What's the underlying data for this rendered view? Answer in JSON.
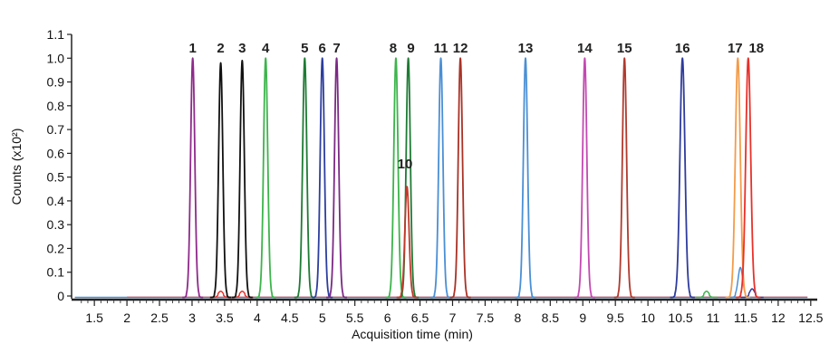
{
  "chart_data": {
    "type": "line",
    "title": "",
    "xlabel": "Acquisition time (min)",
    "ylabel": "Counts (x10²)",
    "xlim": [
      1.15,
      12.6
    ],
    "ylim": [
      0,
      1.1
    ],
    "x_ticks": [
      "1.5",
      "2",
      "2.5",
      "3",
      "3.5",
      "4",
      "4.5",
      "5",
      "5.5",
      "6",
      "6.5",
      "7",
      "7.5",
      "8",
      "8.5",
      "9",
      "9.5",
      "10",
      "10.5",
      "11",
      "11.5",
      "12",
      "12.5"
    ],
    "y_ticks": [
      "0",
      "0.1",
      "0.2",
      "0.3",
      "0.4",
      "0.5",
      "0.6",
      "0.7",
      "0.8",
      "0.9",
      "1.0",
      "1.1"
    ],
    "grid": false,
    "series": [
      {
        "name": "1",
        "rt": 3.01,
        "height": 1.0,
        "color": "#8e2a8a"
      },
      {
        "name": "2",
        "rt": 3.44,
        "height": 0.98,
        "color": "#111111"
      },
      {
        "name": "3",
        "rt": 3.77,
        "height": 0.99,
        "color": "#111111"
      },
      {
        "name": "4",
        "rt": 4.13,
        "height": 1.0,
        "color": "#3cb44b"
      },
      {
        "name": "5",
        "rt": 4.73,
        "height": 1.0,
        "color": "#1e7b34"
      },
      {
        "name": "6",
        "rt": 5.0,
        "height": 1.0,
        "color": "#2c3e9e"
      },
      {
        "name": "7",
        "rt": 5.22,
        "height": 1.0,
        "color": "#7b2a84"
      },
      {
        "name": "8",
        "rt": 6.13,
        "height": 1.0,
        "color": "#3cb44b"
      },
      {
        "name": "9",
        "rt": 6.32,
        "height": 1.0,
        "color": "#1e7b34"
      },
      {
        "name": "10",
        "rt": 6.3,
        "height": 0.46,
        "color": "#c0392b"
      },
      {
        "name": "11",
        "rt": 6.82,
        "height": 1.0,
        "color": "#4a8fd4"
      },
      {
        "name": "12",
        "rt": 7.12,
        "height": 1.0,
        "color": "#a93226"
      },
      {
        "name": "13",
        "rt": 8.12,
        "height": 1.0,
        "color": "#4a8fd4"
      },
      {
        "name": "14",
        "rt": 9.03,
        "height": 1.0,
        "color": "#c349b1"
      },
      {
        "name": "15",
        "rt": 9.64,
        "height": 1.0,
        "color": "#b03a2e"
      },
      {
        "name": "16",
        "rt": 10.53,
        "height": 1.0,
        "color": "#2e3c9c"
      },
      {
        "name": "17",
        "rt": 11.38,
        "height": 1.0,
        "color": "#f39c4a"
      },
      {
        "name": "18",
        "rt": 11.54,
        "height": 1.0,
        "color": "#e8312a"
      }
    ],
    "minor_peaks": [
      {
        "rt": 11.42,
        "height": 0.12,
        "color": "#4a8fd4"
      },
      {
        "rt": 3.44,
        "height": 0.02,
        "color": "#e8312a"
      },
      {
        "rt": 3.77,
        "height": 0.02,
        "color": "#e8312a"
      },
      {
        "rt": 10.9,
        "height": 0.02,
        "color": "#3cb44b"
      },
      {
        "rt": 11.6,
        "height": 0.03,
        "color": "#2e3c9c"
      }
    ]
  }
}
